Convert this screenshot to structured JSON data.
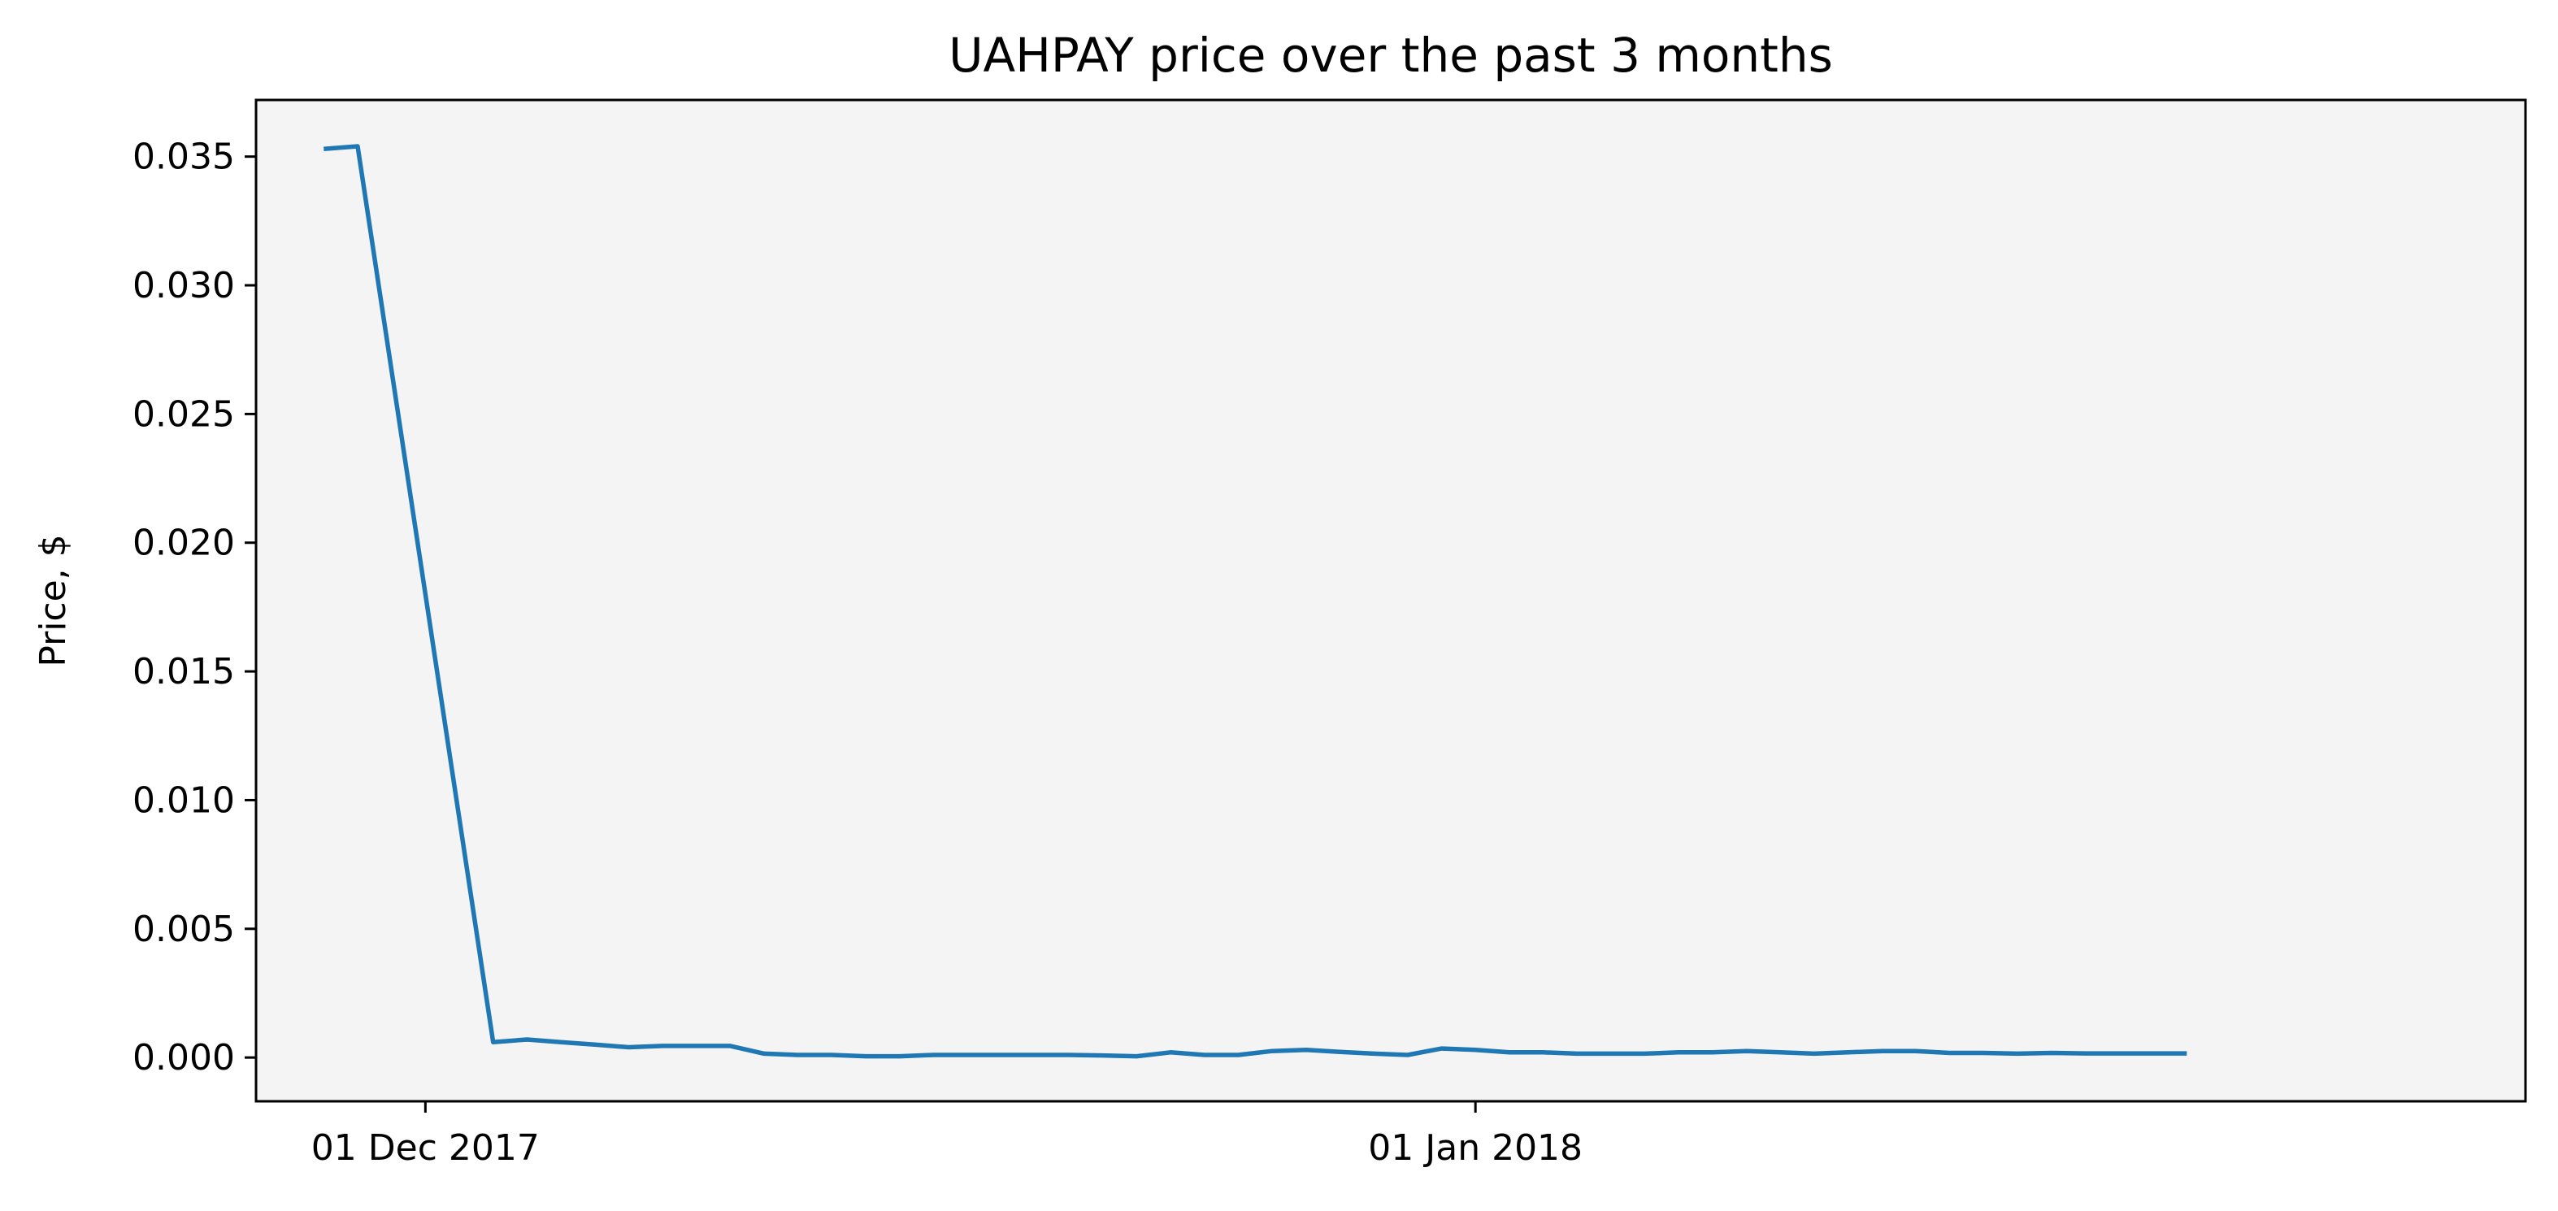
{
  "chart_data": {
    "type": "line",
    "title": "UAHPAY price over the past 3 months",
    "xlabel": "",
    "ylabel": "Price, $",
    "x_ticks": [
      {
        "date": "2017-12-01",
        "label": "01 Dec 2017"
      },
      {
        "date": "2018-01-01",
        "label": "01 Jan 2018"
      }
    ],
    "y_ticks": [
      {
        "value": 0.0,
        "label": "0.000"
      },
      {
        "value": 0.005,
        "label": "0.005"
      },
      {
        "value": 0.01,
        "label": "0.010"
      },
      {
        "value": 0.015,
        "label": "0.015"
      },
      {
        "value": 0.02,
        "label": "0.020"
      },
      {
        "value": 0.025,
        "label": "0.025"
      },
      {
        "value": 0.03,
        "label": "0.030"
      },
      {
        "value": 0.035,
        "label": "0.035"
      }
    ],
    "xlim": [
      "2017-11-26",
      "2018-02-01"
    ],
    "ylim": [
      -0.0017,
      0.0372
    ],
    "grid": false,
    "colors": {
      "line": "#1f77b4",
      "plot_background": "#f4f4f4",
      "frame": "#000000"
    },
    "series": [
      {
        "x": [
          "2017-11-28",
          "2017-11-29",
          "2017-12-03",
          "2017-12-04",
          "2017-12-05",
          "2017-12-06",
          "2017-12-07",
          "2017-12-08",
          "2017-12-09",
          "2017-12-10",
          "2017-12-11",
          "2017-12-12",
          "2017-12-13",
          "2017-12-14",
          "2017-12-15",
          "2017-12-16",
          "2017-12-17",
          "2017-12-18",
          "2017-12-19",
          "2017-12-20",
          "2017-12-21",
          "2017-12-22",
          "2017-12-23",
          "2017-12-24",
          "2017-12-25",
          "2017-12-26",
          "2017-12-27",
          "2017-12-28",
          "2017-12-29",
          "2017-12-30",
          "2017-12-31",
          "2018-01-01",
          "2018-01-02",
          "2018-01-03",
          "2018-01-04",
          "2018-01-05",
          "2018-01-06",
          "2018-01-07",
          "2018-01-08",
          "2018-01-09",
          "2018-01-10",
          "2018-01-11",
          "2018-01-12",
          "2018-01-13",
          "2018-01-14",
          "2018-01-15",
          "2018-01-16",
          "2018-01-17",
          "2018-01-18",
          "2018-01-19",
          "2018-01-20",
          "2018-01-21",
          "2018-01-22"
        ],
        "y": [
          0.0353,
          0.0354,
          0.0006,
          0.0007,
          0.0006,
          0.0005,
          0.0004,
          0.00045,
          0.00045,
          0.00045,
          0.00015,
          0.0001,
          0.0001,
          5e-05,
          5e-05,
          0.0001,
          0.0001,
          0.0001,
          0.0001,
          0.0001,
          8e-05,
          5e-05,
          0.0002,
          0.0001,
          0.0001,
          0.00025,
          0.0003,
          0.00022,
          0.00015,
          0.0001,
          0.00035,
          0.0003,
          0.0002,
          0.0002,
          0.00015,
          0.00015,
          0.00015,
          0.0002,
          0.0002,
          0.00025,
          0.0002,
          0.00015,
          0.0002,
          0.00025,
          0.00025,
          0.00018,
          0.00018,
          0.00015,
          0.00018,
          0.00016,
          0.00016,
          0.00016,
          0.00016
        ]
      }
    ]
  }
}
